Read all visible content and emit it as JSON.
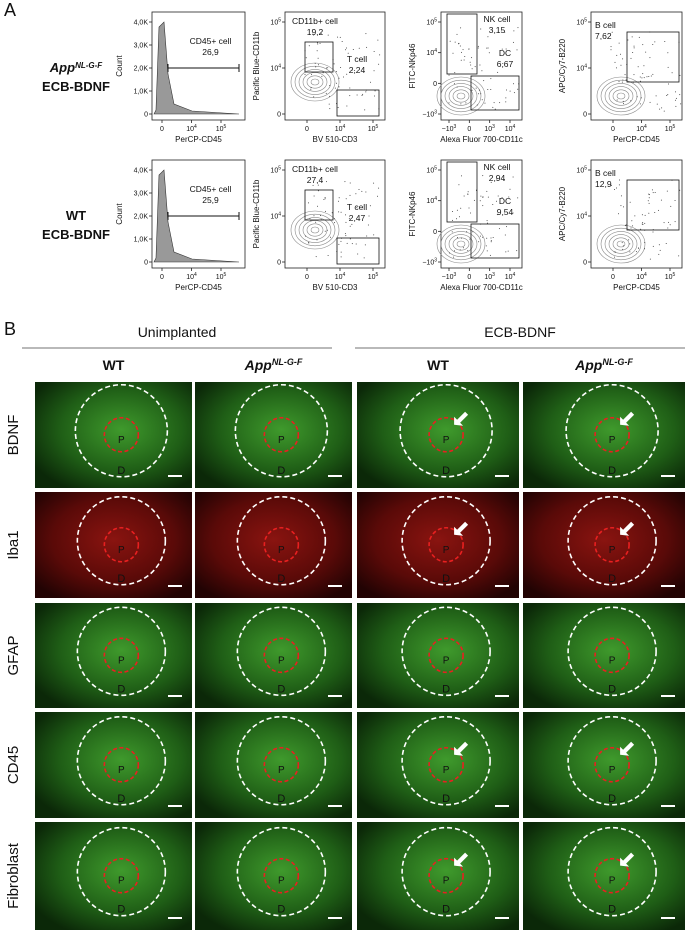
{
  "panel_a": {
    "label": "A",
    "rows": [
      {
        "genotype": "App",
        "genotype_sup": "NL-G-F",
        "group": "ECB-BDNF",
        "plots": [
          {
            "type": "histogram",
            "ylabel": "Count",
            "xlabel": "PerCP-CD45",
            "yticks": [
              "0",
              "1,0K",
              "2,0K",
              "3,0K",
              "4,0K"
            ],
            "xticks": [
              "0",
              {
                "b": "10",
                "e": "4"
              },
              {
                "b": "10",
                "e": "5"
              }
            ],
            "gates": [
              {
                "name": "CD45+ cell",
                "value": "26,9"
              }
            ]
          },
          {
            "type": "tcell",
            "ylabel": "Pacific Blue-CD11b",
            "xlabel": "BV 510-CD3",
            "yticks": [
              "0",
              {
                "b": "10",
                "e": "4"
              },
              {
                "b": "10",
                "e": "5"
              }
            ],
            "xticks": [
              "0",
              {
                "b": "10",
                "e": "4"
              },
              {
                "b": "10",
                "e": "5"
              }
            ],
            "gates": [
              {
                "name": "CD11b+ cell",
                "value": "19,2"
              },
              {
                "name": "T cell",
                "value": "2,24"
              }
            ]
          },
          {
            "type": "nk",
            "ylabel": "FITC-NKp46",
            "xlabel": "Alexa Fluor 700-CD11c",
            "yticks": [
              {
                "b": "−10",
                "e": "3"
              },
              "0",
              {
                "b": "10",
                "e": "4"
              },
              {
                "b": "10",
                "e": "5"
              }
            ],
            "xticks": [
              {
                "b": "−10",
                "e": "3"
              },
              "0",
              {
                "b": "10",
                "e": "3"
              },
              {
                "b": "10",
                "e": "4"
              }
            ],
            "gates": [
              {
                "name": "NK cell",
                "value": "3,15"
              },
              {
                "name": "DC",
                "value": "6,67"
              }
            ]
          },
          {
            "type": "bcell",
            "ylabel": "APC/Cy7-B220",
            "xlabel": "PerCP-CD45",
            "yticks": [
              "0",
              {
                "b": "10",
                "e": "4"
              },
              {
                "b": "10",
                "e": "5"
              }
            ],
            "xticks": [
              "0",
              {
                "b": "10",
                "e": "4"
              },
              {
                "b": "10",
                "e": "5"
              }
            ],
            "gates": [
              {
                "name": "B cell",
                "value": "7,62"
              }
            ]
          }
        ]
      },
      {
        "genotype": "WT",
        "group": "ECB-BDNF",
        "plots": [
          {
            "type": "histogram",
            "ylabel": "Count",
            "xlabel": "PerCP-CD45",
            "yticks": [
              "0",
              "1,0K",
              "2,0K",
              "3,0K",
              "4,0K"
            ],
            "xticks": [
              "0",
              {
                "b": "10",
                "e": "4"
              },
              {
                "b": "10",
                "e": "5"
              }
            ],
            "gates": [
              {
                "name": "CD45+ cell",
                "value": "25,9"
              }
            ]
          },
          {
            "type": "tcell",
            "ylabel": "Pacific Blue-CD11b",
            "xlabel": "BV 510-CD3",
            "yticks": [
              "0",
              {
                "b": "10",
                "e": "4"
              },
              {
                "b": "10",
                "e": "5"
              }
            ],
            "xticks": [
              "0",
              {
                "b": "10",
                "e": "4"
              },
              {
                "b": "10",
                "e": "5"
              }
            ],
            "gates": [
              {
                "name": "CD11b+ cell",
                "value": "27,4"
              },
              {
                "name": "T cell",
                "value": "2,47"
              }
            ]
          },
          {
            "type": "nk",
            "ylabel": "FITC-NKp46",
            "xlabel": "Alexa Fluor 700-CD11c",
            "yticks": [
              {
                "b": "−10",
                "e": "3"
              },
              "0",
              {
                "b": "10",
                "e": "4"
              },
              {
                "b": "10",
                "e": "5"
              }
            ],
            "xticks": [
              {
                "b": "−10",
                "e": "3"
              },
              "0",
              {
                "b": "10",
                "e": "3"
              },
              {
                "b": "10",
                "e": "4"
              }
            ],
            "gates": [
              {
                "name": "NK cell",
                "value": "2,94"
              },
              {
                "name": "DC",
                "value": "9,54"
              }
            ]
          },
          {
            "type": "bcell",
            "ylabel": "APC/Cy7-B220",
            "xlabel": "PerCP-CD45",
            "yticks": [
              "0",
              {
                "b": "10",
                "e": "4"
              },
              {
                "b": "10",
                "e": "5"
              }
            ],
            "xticks": [
              "0",
              {
                "b": "10",
                "e": "4"
              },
              {
                "b": "10",
                "e": "5"
              }
            ],
            "gates": [
              {
                "name": "B cell",
                "value": "12,9"
              }
            ]
          }
        ]
      }
    ]
  },
  "panel_b": {
    "label": "B",
    "groups": [
      "Unimplanted",
      "ECB-BDNF"
    ],
    "columns": [
      {
        "genotype": "WT"
      },
      {
        "genotype": "App",
        "genotype_sup": "NL-G-F"
      },
      {
        "genotype": "WT"
      },
      {
        "genotype": "App",
        "genotype_sup": "NL-G-F"
      }
    ],
    "rows": [
      "BDNF",
      "Iba1",
      "GFAP",
      "CD45",
      "Fibroblast"
    ],
    "center_label": "P",
    "outer_label": "D"
  }
}
